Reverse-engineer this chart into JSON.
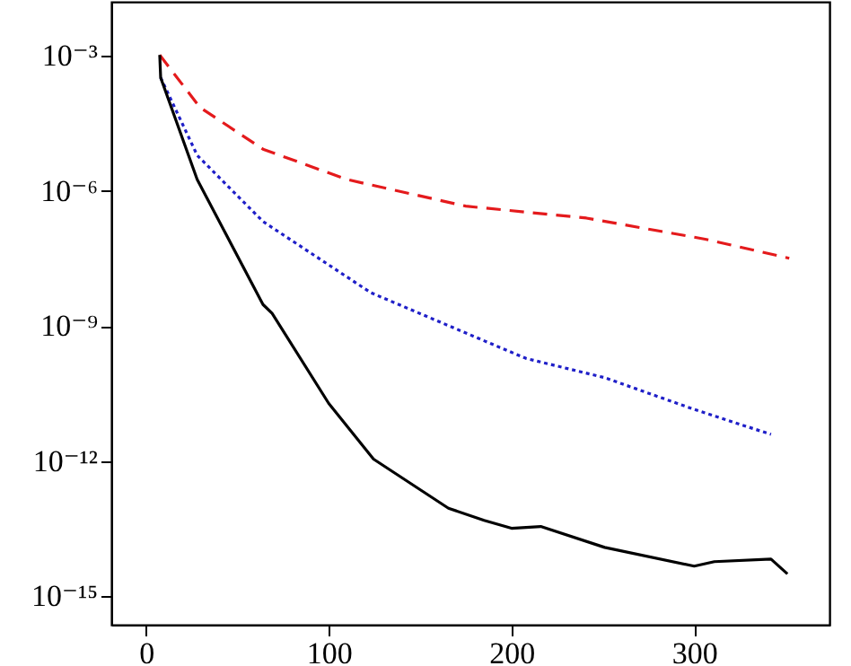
{
  "chart_data": {
    "type": "line",
    "log": "y",
    "grid": false,
    "marker": "none",
    "xlim": [
      -19,
      374
    ],
    "xticks": [
      0,
      100,
      200,
      300
    ],
    "ylim": [
      2.3e-16,
      0.016
    ],
    "yticks": [
      {
        "value": 0.001,
        "label": "10⁻³"
      },
      {
        "value": 1e-06,
        "label": "10⁻⁶"
      },
      {
        "value": 1e-09,
        "label": "10⁻⁹"
      },
      {
        "value": 1e-12,
        "label": "10⁻¹²"
      },
      {
        "value": 1e-15,
        "label": "10⁻¹⁵"
      }
    ],
    "series": [
      {
        "color": "#e41a1c",
        "line_style": "dashed",
        "x": [
          7.5,
          29.5,
          64,
          110,
          175,
          241,
          306,
          352
        ],
        "values": [
          0.00105,
          7.2e-05,
          8.5e-06,
          1.8e-06,
          4.6e-07,
          2.5e-07,
          8.5e-08,
          3.2e-08
        ]
      },
      {
        "color": "#1f1fc8",
        "line_style": "dotted",
        "x": [
          8,
          28,
          64,
          123,
          185,
          208,
          251,
          300,
          342
        ],
        "values": [
          0.00033,
          6.2e-06,
          2.1e-07,
          5.5e-09,
          4.7e-10,
          1.9e-10,
          7.1e-11,
          1.4e-11,
          3.9e-12
        ]
      },
      {
        "color": "#000000",
        "line_style": "solid",
        "x": [
          7.5,
          8,
          28,
          64,
          69,
          100,
          124.5,
          165.5,
          185,
          200,
          216,
          251,
          300,
          311,
          342,
          351
        ],
        "values": [
          0.00105,
          0.00033,
          1.8e-06,
          3e-09,
          1.9e-09,
          1.9e-11,
          1.1e-12,
          8.9e-14,
          4.8e-14,
          3.2e-14,
          3.5e-14,
          1.2e-14,
          4.6e-15,
          5.8e-15,
          6.6e-15,
          3.1e-15
        ]
      }
    ]
  }
}
